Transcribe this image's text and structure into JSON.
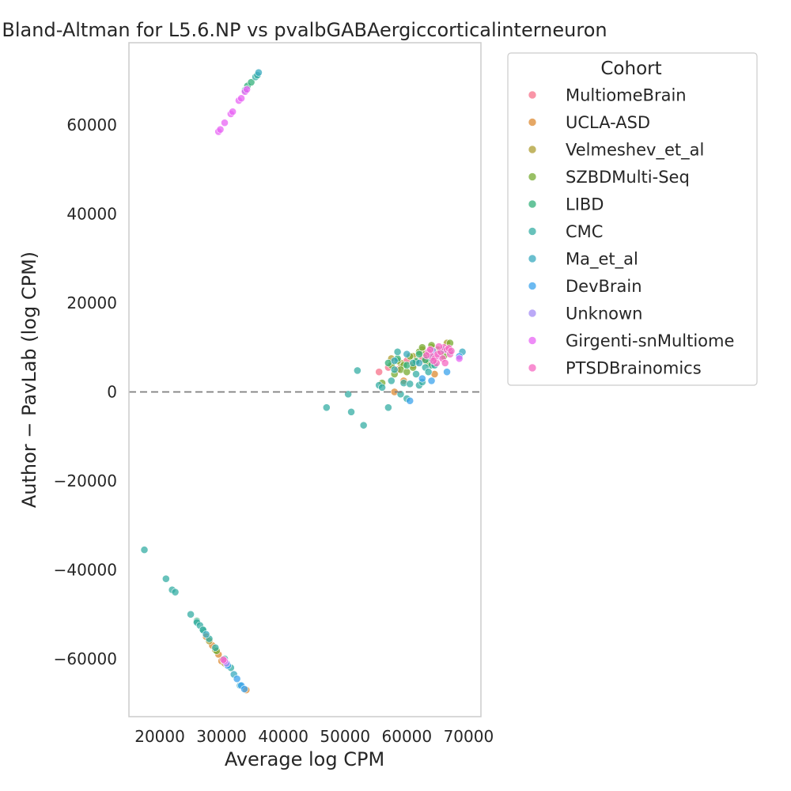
{
  "chart_data": {
    "type": "scatter",
    "title": "Bland-Altman for L5.6.NP vs pvalbGABAergiccorticalinterneuron",
    "xlabel": "Average log CPM",
    "ylabel": "Author − PavLab (log CPM)",
    "xlim": [
      15000,
      72000
    ],
    "ylim": [
      -73000,
      78500
    ],
    "xticks": [
      20000,
      30000,
      40000,
      50000,
      60000,
      70000
    ],
    "yticks": [
      -60000,
      -40000,
      -20000,
      0,
      20000,
      40000,
      60000
    ],
    "xtick_labels": [
      "20000",
      "30000",
      "40000",
      "50000",
      "60000",
      "70000"
    ],
    "ytick_labels": [
      "−60000",
      "−40000",
      "−20000",
      "0",
      "20000",
      "40000",
      "60000"
    ],
    "grid": false,
    "reference_line": {
      "y": 0,
      "style": "dashed",
      "color": "#7f7f7f"
    },
    "legend": {
      "title": "Cohort",
      "position": "outside-right"
    },
    "series": [
      {
        "name": "MultiomeBrain",
        "color": "#f77189",
        "points": [
          [
            55500,
            4500
          ],
          [
            57000,
            5500
          ],
          [
            60000,
            7000
          ],
          [
            61500,
            6500
          ],
          [
            64000,
            8000
          ],
          [
            58500,
            5000
          ],
          [
            62500,
            7500
          ]
        ]
      },
      {
        "name": "UCLA-ASD",
        "color": "#dc8932",
        "points": [
          [
            58000,
            0
          ],
          [
            59500,
            2500
          ],
          [
            61000,
            6000
          ],
          [
            63000,
            7000
          ],
          [
            64500,
            4000
          ],
          [
            27500,
            -55000
          ],
          [
            28500,
            -57000
          ],
          [
            29500,
            -59000
          ],
          [
            30000,
            -60500
          ],
          [
            34000,
            -67000
          ]
        ]
      },
      {
        "name": "Velmeshev_et_al",
        "color": "#ae9d31",
        "points": [
          [
            57500,
            7500
          ],
          [
            59000,
            6500
          ],
          [
            61000,
            8000
          ],
          [
            62500,
            9500
          ],
          [
            64000,
            10000
          ],
          [
            65500,
            9000
          ],
          [
            66500,
            11000
          ],
          [
            28000,
            -56000
          ],
          [
            29000,
            -58000
          ],
          [
            30500,
            -61000
          ]
        ]
      },
      {
        "name": "SZBDMulti-Seq",
        "color": "#77ab31",
        "points": [
          [
            56000,
            2000
          ],
          [
            58000,
            4000
          ],
          [
            59500,
            6000
          ],
          [
            60500,
            8000
          ],
          [
            61500,
            7000
          ],
          [
            62000,
            9000
          ],
          [
            62500,
            10000
          ],
          [
            63000,
            8500
          ],
          [
            64000,
            10500
          ],
          [
            65000,
            9500
          ],
          [
            66000,
            8000
          ],
          [
            67000,
            11000
          ],
          [
            59000,
            5000
          ],
          [
            60000,
            4500
          ],
          [
            61000,
            5500
          ],
          [
            63500,
            6500
          ],
          [
            64500,
            7500
          ],
          [
            58500,
            7000
          ],
          [
            57500,
            6000
          ],
          [
            29200,
            -58200
          ]
        ]
      },
      {
        "name": "LIBD",
        "color": "#33b07a",
        "points": [
          [
            57000,
            6500
          ],
          [
            58500,
            7500
          ],
          [
            60000,
            6000
          ],
          [
            61500,
            6800
          ],
          [
            62000,
            8500
          ],
          [
            63000,
            7200
          ],
          [
            64000,
            6000
          ],
          [
            27000,
            -53500
          ],
          [
            26000,
            -51500
          ],
          [
            34200,
            68800
          ],
          [
            34800,
            69600
          ]
        ]
      },
      {
        "name": "CMC",
        "color": "#36ada4",
        "points": [
          [
            17500,
            -35500
          ],
          [
            21000,
            -42000
          ],
          [
            22000,
            -44500
          ],
          [
            22500,
            -45000
          ],
          [
            25000,
            -50000
          ],
          [
            26000,
            -51800
          ],
          [
            26500,
            -52500
          ],
          [
            27000,
            -53500
          ],
          [
            28000,
            -55500
          ],
          [
            29000,
            -57500
          ],
          [
            30500,
            -60000
          ],
          [
            31500,
            -62000
          ],
          [
            47000,
            -3500
          ],
          [
            50500,
            -500
          ],
          [
            51000,
            -4500
          ],
          [
            52000,
            4800
          ],
          [
            53000,
            -7500
          ],
          [
            55500,
            1500
          ],
          [
            56000,
            1000
          ],
          [
            57000,
            -3500
          ],
          [
            57500,
            2500
          ],
          [
            58000,
            5000
          ],
          [
            58500,
            9000
          ],
          [
            59000,
            -500
          ],
          [
            59500,
            2000
          ],
          [
            60000,
            -1500
          ],
          [
            60500,
            1800
          ],
          [
            61000,
            6500
          ],
          [
            61500,
            4000
          ],
          [
            62000,
            1500
          ],
          [
            62500,
            2200
          ],
          [
            63000,
            5500
          ],
          [
            63500,
            4500
          ],
          [
            64000,
            7500
          ],
          [
            64500,
            6000
          ],
          [
            35500,
            70800
          ],
          [
            35800,
            71200
          ],
          [
            33800,
            67800
          ]
        ]
      },
      {
        "name": "Ma_et_al",
        "color": "#38aabf",
        "points": [
          [
            58000,
            7000
          ],
          [
            60000,
            8500
          ],
          [
            62000,
            6500
          ],
          [
            64000,
            8000
          ],
          [
            66000,
            9500
          ],
          [
            67000,
            9000
          ],
          [
            69000,
            9000
          ],
          [
            36000,
            71800
          ],
          [
            27500,
            -54500
          ],
          [
            32000,
            -63500
          ],
          [
            33000,
            -66000
          ]
        ]
      },
      {
        "name": "DevBrain",
        "color": "#3ba3ec",
        "points": [
          [
            60500,
            -2000
          ],
          [
            62500,
            3000
          ],
          [
            64000,
            2500
          ],
          [
            66500,
            4500
          ],
          [
            68500,
            8000
          ],
          [
            31000,
            -61500
          ],
          [
            32500,
            -64500
          ],
          [
            33200,
            -66000
          ],
          [
            33700,
            -66800
          ]
        ]
      },
      {
        "name": "Unknown",
        "color": "#a48cf4",
        "points": [
          [
            30800,
            -61000
          ],
          [
            64200,
            9200
          ]
        ]
      },
      {
        "name": "Girgenti-snMultiome",
        "color": "#e866f4",
        "points": [
          [
            29500,
            58500
          ],
          [
            29800,
            59000
          ],
          [
            30500,
            60500
          ],
          [
            31500,
            62500
          ],
          [
            31800,
            63000
          ],
          [
            32800,
            65500
          ],
          [
            33200,
            66000
          ],
          [
            33800,
            67500
          ],
          [
            34100,
            68000
          ],
          [
            30500,
            -60500
          ],
          [
            65000,
            8000
          ],
          [
            68500,
            7500
          ]
        ]
      },
      {
        "name": "PTSDBrainomics",
        "color": "#f668c2",
        "points": [
          [
            63500,
            9000
          ],
          [
            64000,
            8000
          ],
          [
            64500,
            7500
          ],
          [
            65000,
            8500
          ],
          [
            65500,
            9000
          ],
          [
            66000,
            10000
          ],
          [
            66500,
            9500
          ],
          [
            67000,
            8500
          ],
          [
            64800,
            6500
          ],
          [
            65800,
            7500
          ],
          [
            66200,
            6500
          ],
          [
            63800,
            9500
          ],
          [
            65200,
            10200
          ],
          [
            66800,
            9800
          ],
          [
            64300,
            7000
          ],
          [
            63200,
            8200
          ],
          [
            67200,
            9200
          ],
          [
            30300,
            -60200
          ]
        ]
      }
    ]
  }
}
